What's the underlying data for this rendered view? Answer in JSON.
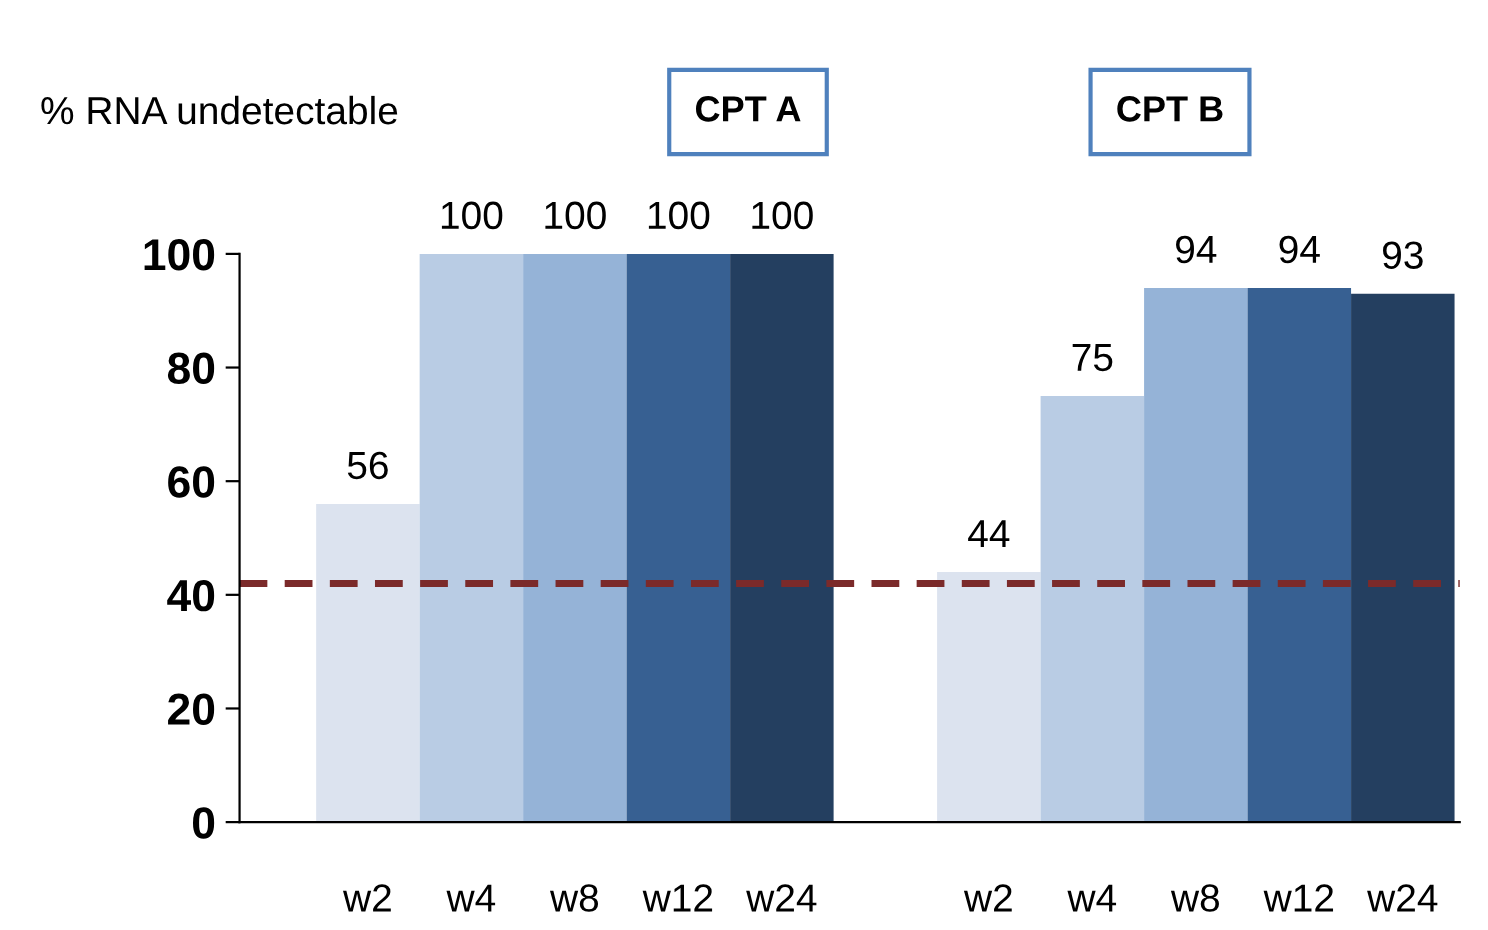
{
  "chart_data": {
    "type": "bar",
    "categories": [
      "w2",
      "w4",
      "w8",
      "w12",
      "w24",
      null,
      "w2",
      "w4",
      "w8",
      "w12",
      "w24"
    ],
    "values": [
      56,
      100,
      100,
      100,
      100,
      null,
      44,
      75,
      94,
      94,
      93
    ],
    "colors": [
      "#dce3ef",
      "#b9cce4",
      "#95b3d7",
      "#376092",
      "#243f60",
      "#ffffff",
      "#dce3ef",
      "#b9cce4",
      "#95b3d7",
      "#376092",
      "#243f60"
    ],
    "ylabel": "% RNA undetectable",
    "annotations": [
      "CPT A",
      "CPT B"
    ],
    "ylim": [
      0,
      100
    ],
    "yticks": [
      0,
      20,
      40,
      60,
      80,
      100
    ],
    "ref_lines": [
      {
        "axis": "y",
        "value": 42,
        "color": "#7b2a2a",
        "line_style": "dashed"
      }
    ],
    "data_labels": true,
    "grid": false,
    "legend": false
  }
}
